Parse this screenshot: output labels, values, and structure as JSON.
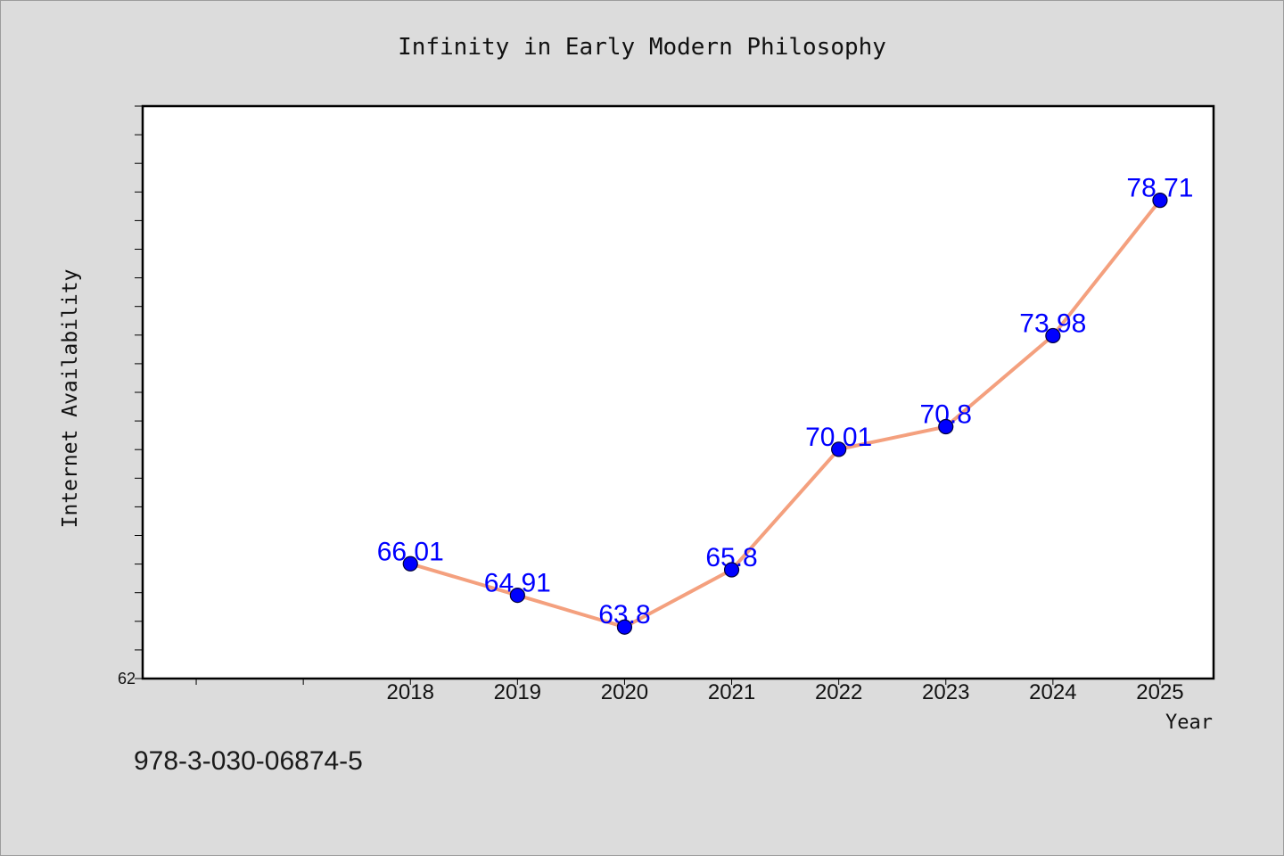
{
  "colors": {
    "page_background": "#dcdcdc",
    "page_border": "#9c9c9c",
    "plot_background": "#ffffff",
    "axis": "#000000",
    "text": "#111111"
  },
  "chart_data": {
    "type": "line",
    "title": "Infinity in Early Modern Philosophy",
    "xlabel": "Year",
    "ylabel": "Internet Availability",
    "x": [
      2018,
      2019,
      2020,
      2021,
      2022,
      2023,
      2024,
      2025
    ],
    "series": [
      {
        "values": [
          66.01,
          64.91,
          63.8,
          65.8,
          70.01,
          70.8,
          73.98,
          78.71
        ],
        "data_labels": [
          "66.01",
          "64.91",
          "63.8",
          "65.8",
          "70.01",
          "70.8",
          "73.98",
          "78.71"
        ],
        "line_color": "#f4a07e",
        "marker": "circle",
        "marker_color": "#0000ff",
        "label_color": "#0000ff"
      }
    ],
    "xlim": [
      2015.5,
      2025.5
    ],
    "ylim": [
      62,
      82
    ],
    "xticks": [
      2016,
      2017,
      2018,
      2019,
      2020,
      2021,
      2022,
      2023,
      2024,
      2025
    ],
    "xtick_labels": [
      "",
      "",
      "2018",
      "2019",
      "2020",
      "2021",
      "2022",
      "2023",
      "2024",
      "2025"
    ],
    "yticks": [
      62
    ],
    "ytick_labels": [
      "62"
    ],
    "y_minor_tick_step": 1,
    "grid": false,
    "legend": "none"
  },
  "footer": {
    "text": "978-3-030-06874-5"
  }
}
